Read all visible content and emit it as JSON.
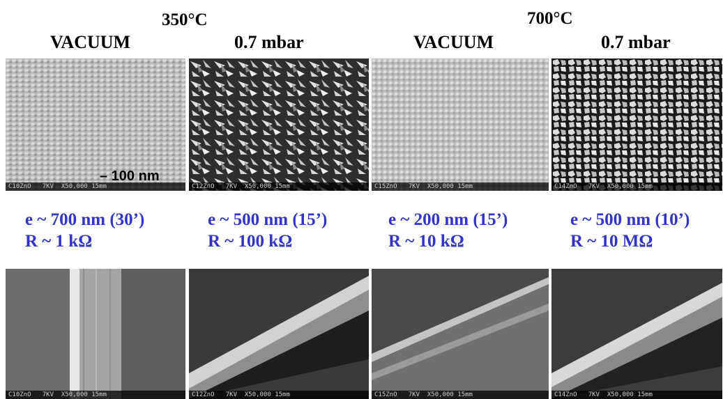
{
  "headers": {
    "temp_350": "350°C",
    "temp_700": "700°C",
    "col1": "VACUUM",
    "col2": "0.7 mbar",
    "col3": "VACUUM",
    "col4": "0.7 mbar"
  },
  "scale_bar": "– 100 nm",
  "measurements": [
    {
      "e": "e ~ 700 nm (30’)",
      "r": "R ~ 1 kΩ"
    },
    {
      "e": "e ~ 500 nm (15’)",
      "r": "R ~ 100 kΩ"
    },
    {
      "e": "e ~ 200 nm (15’)",
      "r": "R ~ 10 kΩ"
    },
    {
      "e": "e ~ 500 nm (10’)",
      "r": "R ~ 10 MΩ"
    }
  ],
  "captions": {
    "top": [
      "C10ZnO   7KV  X50,000 15mm",
      "C12ZnO   7KV  X50,000 15mm",
      "C15ZnO   7KV  X50,000 15mm",
      "C14ZnO   7KV  X50,000 15mm"
    ],
    "bottom": [
      "C10ZnO   7KV  X50,000 15mm",
      "C12ZnO   7KV  X50,000 15mm",
      "C15ZnO   7KV  X50,000 15mm",
      "C14ZnO   7KV  X50,000 15mm"
    ]
  },
  "icons": [
    "sem-image-surface",
    "sem-image-cross-section"
  ]
}
